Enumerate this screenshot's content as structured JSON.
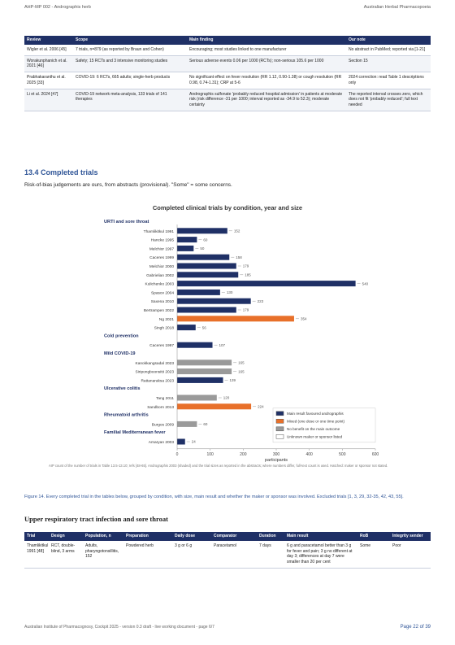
{
  "header": {
    "left": "AHP-MP 002 - Andrographis herb",
    "right": "Australian Herbal Pharmacopoeia"
  },
  "table1": {
    "columns": [
      "Review",
      "Scope",
      "Main finding",
      "Our note"
    ],
    "rows": [
      [
        "Wigler et al. 2006 [45]",
        "7 trials, n=879 (as reported by Braun and Cohen)",
        "Encouraging; most studies linked to one manufacturer",
        "No abstract in PubMed; reported via [1-21]"
      ],
      [
        "Worakunphanich et al. 2021 [46]",
        "Safety; 15 RCTs and 3 intensive monitoring studies",
        "Serious adverse events 0.06 per 1000 (RCTs); non-serious 105.6 per 1000",
        "Section 15"
      ],
      [
        "Prabhakaranthu et al. 2025 [33]",
        "COVID-19: 6 RCTs, 665 adults; single-herb products",
        "No significant effect on fever resolution (RR 1.12, 0.90-1.38) or cough resolution (RR 0.98, 0.74-1.31); CRP at 5-6",
        "2024 correction: read Table 1 descriptions only"
      ],
      [
        "Li et al. 2024 [47]",
        "COVID-19 network meta-analysis, 133 trials of 141 therapies",
        "Andrographis sulfonate 'probably reduced hospital admission' in patients at moderate risk (risk difference -31 per 1000; interval reported as -34.9 to 52.3); moderate certainty",
        "The reported interval crosses zero, which does not fit 'probably reduced'; full text needed"
      ]
    ]
  },
  "section": {
    "heading": "13.4  Completed trials",
    "intro": "Risk-of-bias judgements are ours, from abstracts (provisional). \"Some\" = some concerns."
  },
  "chart_data": {
    "type": "bar",
    "orientation": "horizontal",
    "title": "Completed clinical trials by condition, year and size",
    "groups": [
      {
        "name": "URTI and sore throat",
        "trials": [
          {
            "label": "Thamlikitkul 1991",
            "value": 152,
            "color": "#1f3066"
          },
          {
            "label": "Hancke 1995",
            "value": 60,
            "color": "#1f3066"
          },
          {
            "label": "Melchior 1997",
            "value": 50,
            "color": "#1f3066"
          },
          {
            "label": "Caceres 1999",
            "value": 158,
            "color": "#1f3066"
          },
          {
            "label": "Melchior 2000",
            "value": 179,
            "color": "#1f3066"
          },
          {
            "label": "Gabrielian 2002",
            "value": 185,
            "color": "#1f3066"
          },
          {
            "label": "Kulichenko 2003",
            "value": 540,
            "color": "#1f3066"
          },
          {
            "label": "Spasov 2004",
            "value": 130,
            "color": "#1f3066"
          },
          {
            "label": "Saxena 2010",
            "value": 223,
            "color": "#1f3066"
          },
          {
            "label": "Bertrampen 2022",
            "value": 179,
            "color": "#1f3066"
          },
          {
            "label": "Ng 2021",
            "value": 354,
            "color": "#e8702a"
          },
          {
            "label": "Singh 2018",
            "value": 56,
            "color": "#1f3066"
          }
        ]
      },
      {
        "name": "Cold prevention",
        "trials": [
          {
            "label": "Caceres 1997",
            "value": 107,
            "color": "#1f3066"
          }
        ]
      },
      {
        "name": "Mild COVID-19",
        "trials": [
          {
            "label": "Kanokkangsadal 2023",
            "value": 165,
            "color": "#9a9a9a"
          },
          {
            "label": "Siripongboonsitti 2023",
            "value": 165,
            "color": "#9a9a9a"
          },
          {
            "label": "Rattanaraksa 2023",
            "value": 139,
            "color": "#1f3066"
          }
        ]
      },
      {
        "name": "Ulcerative colitis",
        "trials": [
          {
            "label": "Tang 2011",
            "value": 120,
            "color": "#9a9a9a"
          },
          {
            "label": "Sandborn 2013",
            "value": 224,
            "color": "#e8702a"
          }
        ]
      },
      {
        "name": "Rheumatoid arthritis",
        "trials": [
          {
            "label": "Burgos 2009",
            "value": 60,
            "color": "#9a9a9a"
          }
        ]
      },
      {
        "name": "Familial Mediterranean fever",
        "trials": [
          {
            "label": "Amaryan 2003",
            "value": 24,
            "color": "#1f3066"
          }
        ]
      }
    ],
    "legend": [
      {
        "name": "Main result favoured andrographis",
        "color": "#1f3066"
      },
      {
        "name": "Mixed (one dose or one time point)",
        "color": "#e8702a"
      },
      {
        "name": "No benefit on the main outcome",
        "color": "#9a9a9a"
      },
      {
        "name": "Unknown maker or sponsor listed",
        "color": "#ffffff"
      }
    ],
    "xlim": [
      0,
      600
    ],
    "xticks": [
      0,
      100,
      200,
      300,
      400,
      500,
      600
    ],
    "xlabel": "participants",
    "note": "AIP count of the number of trials in Table 13.5-13.10; refs [48-65]. Andrographis 2003 (shaded) and the trial sizes as reported in the abstracts; where numbers differ, full-text count is used. Hatched: maker or sponsor not stated."
  },
  "caption": "Figure 14. Every completed trial in the tables below, grouped by condition, with size, main result and whether the maker or sponsor was involved. Excluded trials [1, 3, 29, 32-35, 42, 43, 55].",
  "subheading": "Upper respiratory tract infection and sore throat",
  "table2": {
    "columns": [
      "Trial",
      "Design",
      "Population, n",
      "Preparation",
      "Daily dose",
      "Comparator",
      "Duration",
      "Main result",
      "RoB",
      "Integrity sender"
    ],
    "rows": [
      [
        "Thamlikitkul 1991 [48]",
        "RCT, double-blind, 3 arms",
        "Adults, pharyngotonsillitis, 152",
        "Powdered herb",
        "3 g or 6 g",
        "Paracetamol",
        "7 days",
        "6 g and paracetamol better than 3 g for fever and pain; 3 g no different at day 3; differences at day 7 were smaller than 20 per cent",
        "Some",
        "Poor"
      ]
    ]
  },
  "footer": {
    "left": "Australian Institute of Pharmacognosy, Cockpit 2025 - version 0.3 draft - live working document - page 6/7",
    "right": "Page 22 of 39"
  }
}
